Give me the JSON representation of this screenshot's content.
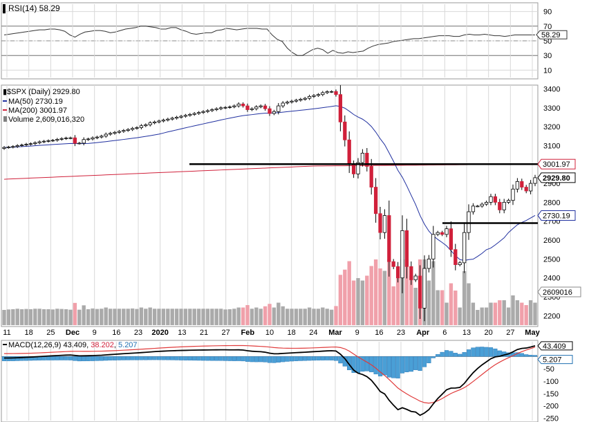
{
  "chart_data": [
    {
      "type": "line",
      "panel": "rsi",
      "legend_label": "RSI(14) 58.29",
      "ylim": [
        0,
        100
      ],
      "yticks": [
        "90",
        "70",
        "50",
        "30",
        "10"
      ],
      "overbought": 70,
      "oversold": 30,
      "last_value_label": "58.29",
      "last_value": 58.29,
      "series": [
        {
          "name": "RSI(14)",
          "values": [
            58,
            59,
            60,
            61,
            62,
            63,
            64,
            65,
            65,
            66,
            66,
            65,
            63,
            58,
            55,
            59,
            62,
            63,
            64,
            64,
            63,
            61,
            62,
            64,
            66,
            67,
            68,
            70,
            70,
            69,
            68,
            66,
            66,
            68,
            68,
            65,
            63,
            60,
            59,
            60,
            61,
            61,
            64,
            65,
            67,
            66,
            65,
            66,
            67,
            67,
            67,
            66,
            66,
            58,
            52,
            49,
            40,
            34,
            30,
            30,
            34,
            38,
            40,
            38,
            33,
            37,
            34,
            33,
            35,
            34,
            35,
            36,
            40,
            43,
            45,
            46,
            47,
            49,
            50,
            51,
            52,
            53,
            53,
            54,
            55,
            56,
            57,
            57,
            57,
            56,
            56,
            58,
            59,
            58,
            58,
            59,
            58,
            57,
            57,
            56,
            57,
            58,
            58,
            58,
            58,
            58
          ]
        }
      ]
    },
    {
      "type": "candlestick",
      "panel": "price",
      "legend": [
        {
          "label": "$SPX (Daily) 2929.80",
          "color": "#000000"
        },
        {
          "label": "MA(50) 2730.19",
          "color": "#1f2f9f"
        },
        {
          "label": "MA(200) 3001.97",
          "color": "#d0203a"
        },
        {
          "label": "Volume 2,609,016,320",
          "color": "#808080"
        }
      ],
      "ylim": [
        2150,
        3420
      ],
      "yticks": [
        "3400",
        "3300",
        "3200",
        "3100",
        "3000",
        "2900",
        "2800",
        "2700",
        "2600",
        "2500",
        "2400",
        "2300",
        "2200"
      ],
      "x_tick_labels": [
        "11",
        "18",
        "25",
        "Dec",
        "9",
        "16",
        "23",
        "2020",
        "13",
        "21",
        "27",
        "Feb",
        "10",
        "18",
        "24",
        "Mar",
        "9",
        "16",
        "23",
        "Apr",
        "6",
        "13",
        "20",
        "27",
        "May"
      ],
      "bold_x_labels": [
        "Dec",
        "2020",
        "Feb",
        "Mar",
        "Apr",
        "May"
      ],
      "close": [
        3090,
        3092,
        3095,
        3100,
        3103,
        3107,
        3110,
        3115,
        3120,
        3123,
        3126,
        3128,
        3133,
        3137,
        3140,
        3141,
        3112,
        3113,
        3132,
        3135,
        3141,
        3145,
        3150,
        3160,
        3165,
        3170,
        3175,
        3180,
        3185,
        3191,
        3195,
        3205,
        3210,
        3220,
        3225,
        3230,
        3235,
        3240,
        3245,
        3250,
        3255,
        3260,
        3265,
        3270,
        3275,
        3280,
        3285,
        3290,
        3295,
        3300,
        3302,
        3305,
        3310,
        3320,
        3310,
        3290,
        3295,
        3305,
        3310,
        3295,
        3270,
        3280,
        3310,
        3325,
        3330,
        3335,
        3340,
        3345,
        3350,
        3360,
        3365,
        3370,
        3380,
        3385,
        3386,
        3370,
        3225,
        3130,
        3000,
        2950,
        3010,
        3060,
        2990,
        2880,
        2740,
        2640,
        2730,
        2486,
        2460,
        2400,
        2650,
        2460,
        2390,
        2410,
        2240,
        2450,
        2500,
        2630,
        2640,
        2630,
        2660,
        2550,
        2470,
        2480,
        2640,
        2750,
        2780,
        2780,
        2790,
        2800,
        2830,
        2800,
        2760,
        2800,
        2810,
        2870,
        2910,
        2880,
        2860,
        2900,
        2930
      ],
      "ma50": {
        "name": "MA(50)",
        "last": 2730.19,
        "label": "2730.19"
      },
      "ma200": {
        "name": "MA(200)",
        "last": 3001.97,
        "label": "3001.97"
      },
      "last_price_label": "2929.80",
      "last_price": 2929.8,
      "last_volume_label": "2609016",
      "horizontal_levels": [
        3001.97,
        2690
      ],
      "up_color": "#ffffff",
      "down_color": "#d0203a",
      "volume_up_color": "#aaaaaa",
      "volume_down_color": "#f0a0aa"
    },
    {
      "type": "line",
      "panel": "macd",
      "legend_label": "MACD(12,26,9) 43.409, 38.202, 5.207",
      "legend_parts": [
        {
          "text": "MACD(12,26,9) 43.409, ",
          "color": "#000000"
        },
        {
          "text": "38.202",
          "color": "#d0203a"
        },
        {
          "text": ", ",
          "color": "#000000"
        },
        {
          "text": "5.207",
          "color": "#1f6fb0"
        }
      ],
      "ylim": [
        -260,
        60
      ],
      "yticks": [
        "-50",
        "-100",
        "-150",
        "-200",
        "-250"
      ],
      "macd_last_label": "43.409",
      "histogram_last_label": "5.207",
      "macd_last": 43.409,
      "signal_last": 38.202,
      "histogram_last": 5.207
    }
  ]
}
